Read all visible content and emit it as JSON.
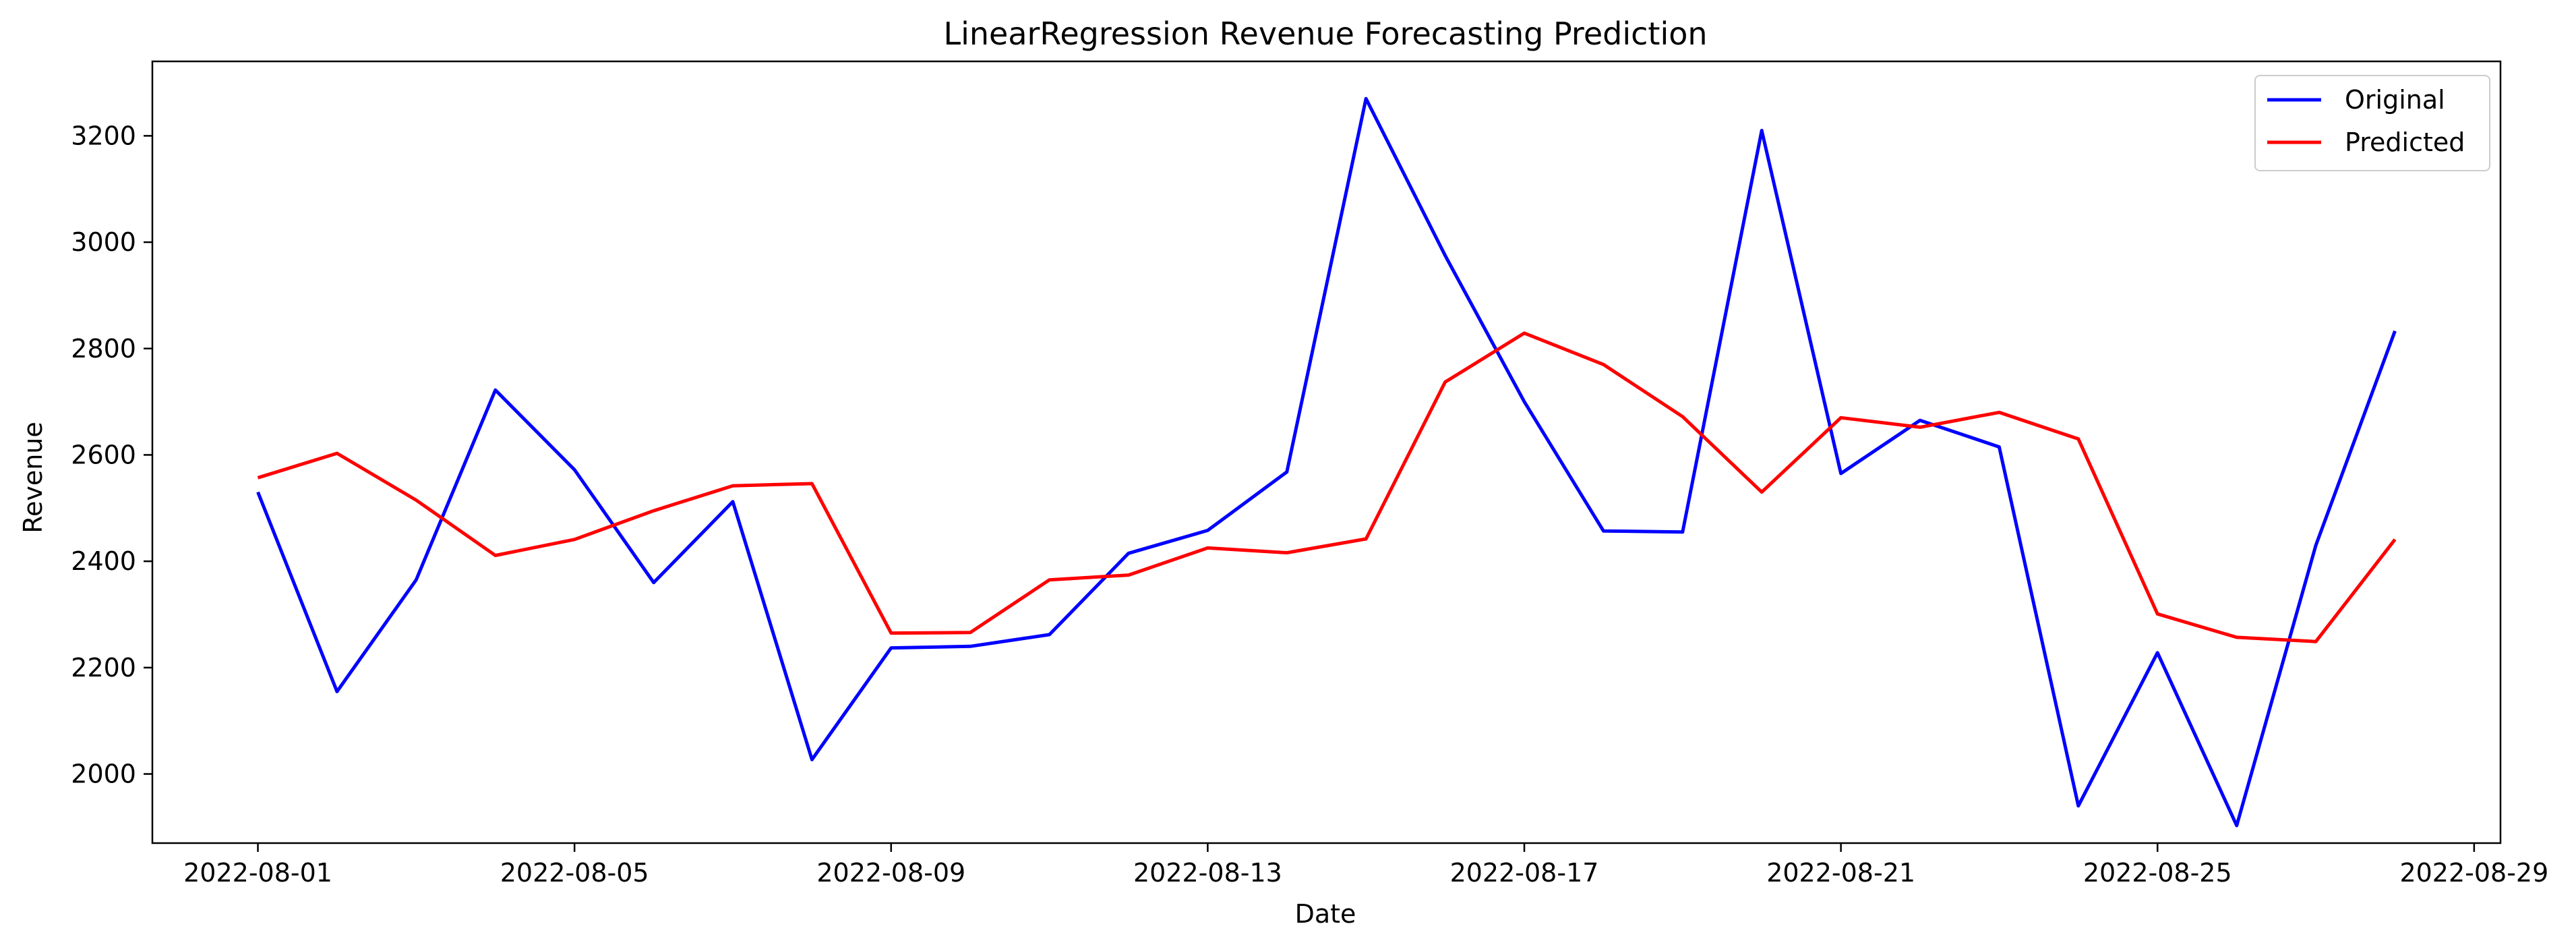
{
  "chart_data": {
    "type": "line",
    "title": "LinearRegression Revenue Forecasting Prediction",
    "xlabel": "Date",
    "ylabel": "Revenue",
    "x": [
      "2022-08-01",
      "2022-08-02",
      "2022-08-03",
      "2022-08-04",
      "2022-08-05",
      "2022-08-06",
      "2022-08-07",
      "2022-08-08",
      "2022-08-09",
      "2022-08-10",
      "2022-08-11",
      "2022-08-12",
      "2022-08-13",
      "2022-08-14",
      "2022-08-15",
      "2022-08-16",
      "2022-08-17",
      "2022-08-18",
      "2022-08-19",
      "2022-08-20",
      "2022-08-21",
      "2022-08-22",
      "2022-08-23",
      "2022-08-24",
      "2022-08-25",
      "2022-08-26",
      "2022-08-27",
      "2022-08-28"
    ],
    "xlim": [
      "2022-07-30T16:00",
      "2022-08-29T08:00"
    ],
    "xticks": [
      "2022-08-01",
      "2022-08-05",
      "2022-08-09",
      "2022-08-13",
      "2022-08-17",
      "2022-08-21",
      "2022-08-25",
      "2022-08-29"
    ],
    "ylim": [
      1870,
      3340
    ],
    "yticks": [
      2000,
      2200,
      2400,
      2600,
      2800,
      3000,
      3200
    ],
    "grid": false,
    "legend_position": "upper right",
    "series": [
      {
        "name": "Original",
        "color": "#0000ff",
        "values": [
          2530,
          2155,
          2365,
          2722,
          2572,
          2360,
          2512,
          2027,
          2237,
          2240,
          2262,
          2415,
          2458,
          2568,
          3270,
          2975,
          2700,
          2457,
          2455,
          3210,
          2565,
          2665,
          2615,
          1940,
          2228,
          1903,
          2430,
          2833
        ]
      },
      {
        "name": "Predicted",
        "color": "#ff0000",
        "values": [
          2557,
          2603,
          2515,
          2411,
          2441,
          2495,
          2542,
          2546,
          2265,
          2266,
          2365,
          2374,
          2425,
          2416,
          2442,
          2737,
          2829,
          2770,
          2672,
          2530,
          2670,
          2652,
          2680,
          2630,
          2301,
          2257,
          2249,
          2441
        ]
      }
    ]
  }
}
